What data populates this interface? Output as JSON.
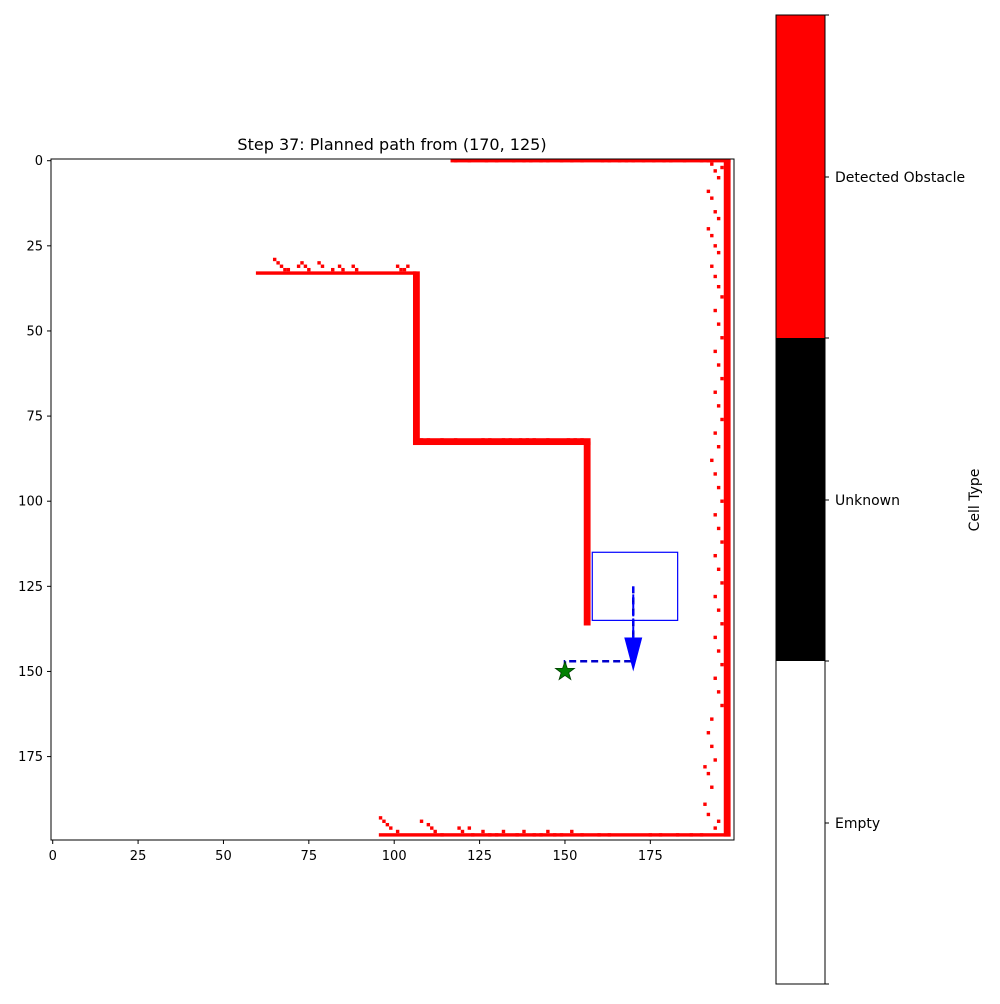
{
  "chart_data": {
    "type": "heatmap",
    "title": "Step 37: Planned path from (170, 125)",
    "xlim": [
      -0.5,
      199.5
    ],
    "ylim": [
      199.5,
      -0.5
    ],
    "y_inverted": true,
    "xticks": [
      0,
      25,
      50,
      75,
      100,
      125,
      150,
      175
    ],
    "yticks": [
      0,
      25,
      50,
      75,
      100,
      125,
      150,
      175
    ],
    "cell_states": [
      "Empty",
      "Unknown",
      "Detected Obstacle"
    ],
    "cell_colors": {
      "Empty": "#ffffff",
      "Unknown": "#000000",
      "Detected Obstacle": "#ff0000"
    },
    "colorbar_label": "Cell Type",
    "default_cell_state": "Empty",
    "obstacle_segments": [
      {
        "x": [
          60,
          106
        ],
        "y": [
          33,
          33
        ]
      },
      {
        "x": [
          106,
          107
        ],
        "y": [
          33,
          83
        ]
      },
      {
        "x": [
          106,
          157
        ],
        "y": [
          82,
          83
        ]
      },
      {
        "x": [
          156,
          157
        ],
        "y": [
          83,
          136
        ]
      },
      {
        "x": [
          117,
          198
        ],
        "y": [
          0,
          0
        ]
      },
      {
        "x": [
          197,
          198
        ],
        "y": [
          0,
          198
        ]
      },
      {
        "x": [
          96,
          198
        ],
        "y": [
          198,
          198
        ]
      }
    ],
    "obstacle_cells": [
      [
        65,
        29
      ],
      [
        66,
        30
      ],
      [
        67,
        31
      ],
      [
        68,
        32
      ],
      [
        69,
        32
      ],
      [
        72,
        31
      ],
      [
        73,
        30
      ],
      [
        74,
        31
      ],
      [
        75,
        32
      ],
      [
        78,
        30
      ],
      [
        79,
        31
      ],
      [
        82,
        32
      ],
      [
        84,
        31
      ],
      [
        85,
        32
      ],
      [
        88,
        31
      ],
      [
        89,
        32
      ],
      [
        101,
        31
      ],
      [
        102,
        32
      ],
      [
        103,
        32
      ],
      [
        104,
        31
      ],
      [
        108,
        82
      ],
      [
        110,
        82
      ],
      [
        114,
        82
      ],
      [
        118,
        82
      ],
      [
        126,
        82
      ],
      [
        128,
        82
      ],
      [
        132,
        82
      ],
      [
        134,
        82
      ],
      [
        137,
        82
      ],
      [
        139,
        82
      ],
      [
        141,
        82
      ],
      [
        145,
        82
      ],
      [
        151,
        82
      ],
      [
        153,
        82
      ],
      [
        155,
        82
      ],
      [
        118,
        0
      ],
      [
        122,
        0
      ],
      [
        127,
        0
      ],
      [
        130,
        0
      ],
      [
        135,
        0
      ],
      [
        138,
        0
      ],
      [
        140,
        0
      ],
      [
        143,
        0
      ],
      [
        145,
        0
      ],
      [
        149,
        0
      ],
      [
        152,
        0
      ],
      [
        155,
        0
      ],
      [
        161,
        0
      ],
      [
        163,
        0
      ],
      [
        166,
        0
      ],
      [
        168,
        0
      ],
      [
        170,
        0
      ],
      [
        173,
        0
      ],
      [
        176,
        0
      ],
      [
        179,
        0
      ],
      [
        181,
        0
      ],
      [
        185,
        0
      ],
      [
        190,
        0
      ],
      [
        192,
        0
      ],
      [
        193,
        1
      ],
      [
        194,
        3
      ],
      [
        195,
        5
      ],
      [
        196,
        2
      ],
      [
        192,
        9
      ],
      [
        193,
        11
      ],
      [
        194,
        15
      ],
      [
        195,
        17
      ],
      [
        192,
        20
      ],
      [
        193,
        22
      ],
      [
        194,
        25
      ],
      [
        195,
        27
      ],
      [
        193,
        31
      ],
      [
        194,
        34
      ],
      [
        195,
        37
      ],
      [
        196,
        40
      ],
      [
        194,
        44
      ],
      [
        195,
        48
      ],
      [
        196,
        52
      ],
      [
        194,
        56
      ],
      [
        195,
        60
      ],
      [
        196,
        64
      ],
      [
        194,
        68
      ],
      [
        195,
        72
      ],
      [
        196,
        76
      ],
      [
        194,
        80
      ],
      [
        195,
        84
      ],
      [
        193,
        88
      ],
      [
        194,
        92
      ],
      [
        195,
        96
      ],
      [
        196,
        100
      ],
      [
        194,
        104
      ],
      [
        195,
        108
      ],
      [
        196,
        112
      ],
      [
        194,
        116
      ],
      [
        195,
        120
      ],
      [
        196,
        124
      ],
      [
        194,
        128
      ],
      [
        195,
        132
      ],
      [
        196,
        136
      ],
      [
        194,
        140
      ],
      [
        195,
        144
      ],
      [
        196,
        148
      ],
      [
        194,
        152
      ],
      [
        195,
        156
      ],
      [
        196,
        160
      ],
      [
        193,
        164
      ],
      [
        192,
        168
      ],
      [
        193,
        172
      ],
      [
        194,
        176
      ],
      [
        191,
        178
      ],
      [
        192,
        180
      ],
      [
        193,
        184
      ],
      [
        191,
        189
      ],
      [
        192,
        192
      ],
      [
        194,
        196
      ],
      [
        195,
        194
      ],
      [
        96,
        193
      ],
      [
        97,
        194
      ],
      [
        98,
        195
      ],
      [
        99,
        196
      ],
      [
        101,
        197
      ],
      [
        108,
        194
      ],
      [
        110,
        195
      ],
      [
        111,
        196
      ],
      [
        112,
        197
      ],
      [
        114,
        198
      ],
      [
        119,
        196
      ],
      [
        120,
        197
      ],
      [
        122,
        196
      ],
      [
        123,
        198
      ],
      [
        126,
        197
      ],
      [
        128,
        198
      ],
      [
        130,
        198
      ],
      [
        132,
        197
      ],
      [
        136,
        198
      ],
      [
        138,
        197
      ],
      [
        141,
        198
      ],
      [
        143,
        198
      ],
      [
        145,
        197
      ],
      [
        147,
        198
      ],
      [
        149,
        198
      ],
      [
        152,
        197
      ],
      [
        155,
        198
      ],
      [
        160,
        198
      ],
      [
        163,
        198
      ],
      [
        175,
        198
      ],
      [
        178,
        198
      ],
      [
        183,
        198
      ],
      [
        187,
        198
      ],
      [
        190,
        198
      ]
    ],
    "planned_path": [
      [
        170,
        125
      ],
      [
        170,
        147
      ],
      [
        150,
        147
      ],
      [
        150,
        150
      ]
    ],
    "heading_arrow": {
      "from": [
        170,
        130
      ],
      "to": [
        170,
        150
      ],
      "color": "#0000ff"
    },
    "goal": {
      "x": 150,
      "y": 150,
      "marker": "star",
      "color": "#008000"
    },
    "sensor_window": {
      "x": [
        158,
        183
      ],
      "y": [
        115,
        135
      ],
      "color": "#0000ff"
    }
  }
}
